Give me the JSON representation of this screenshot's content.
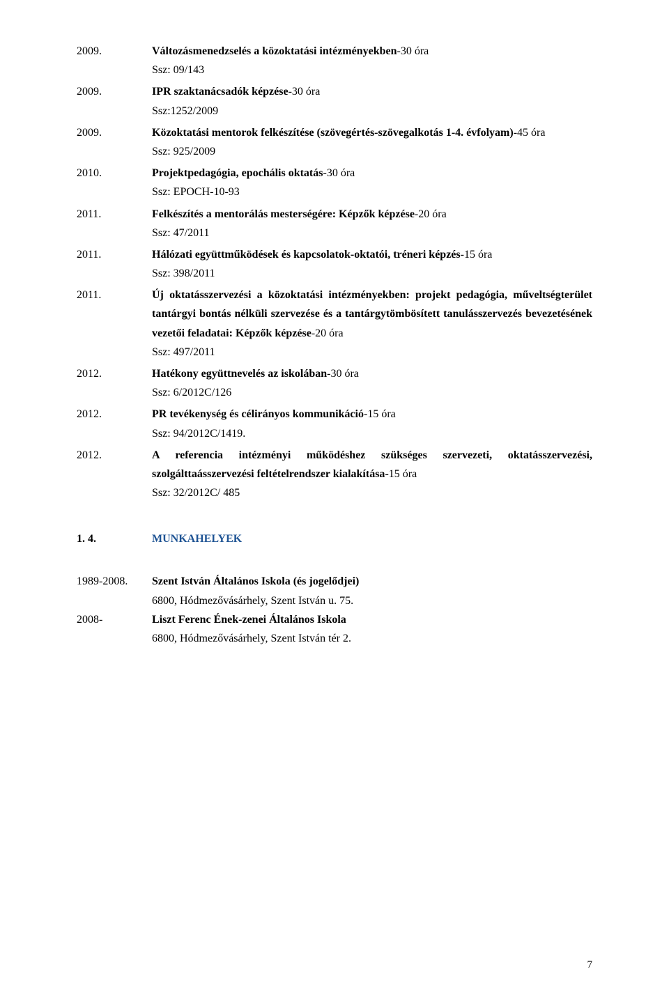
{
  "entries": [
    {
      "year": "2009.",
      "lines": [
        {
          "bold_prefix": "Változásmenedzselés a közoktatási intézményekben",
          "suffix": "-30 óra"
        }
      ],
      "sublines": [
        "Ssz: 09/143"
      ]
    },
    {
      "year": "2009.",
      "lines": [
        {
          "bold_prefix": "IPR szaktanácsadók képzése",
          "suffix": "-30 óra"
        }
      ],
      "sublines": [
        "Ssz:1252/2009"
      ]
    },
    {
      "year": "2009.",
      "lines": [
        {
          "bold_prefix": "Közoktatási mentorok felkészítése (szövegértés-szövegalkotás 1-4. évfolyam)",
          "suffix": "-45 óra"
        }
      ],
      "sublines": [
        "Ssz: 925/2009"
      ]
    },
    {
      "year": "2010.",
      "lines": [
        {
          "bold_prefix": "Projektpedagógia, epochális oktatás",
          "suffix": "-30 óra"
        }
      ],
      "sublines": [
        "Ssz: EPOCH-10-93"
      ]
    },
    {
      "year": "2011.",
      "lines": [
        {
          "bold_prefix": "Felkészítés a mentorálás mesterségére: Képzők képzése",
          "suffix": "-20 óra"
        }
      ],
      "sublines": [
        "Ssz: 47/2011"
      ]
    },
    {
      "year": "2011.",
      "lines": [
        {
          "bold_prefix": "Hálózati együttműködések és kapcsolatok-oktatói, tréneri képzés",
          "suffix": "-15 óra"
        }
      ],
      "sublines": [
        "Ssz: 398/2011"
      ]
    },
    {
      "year": "2011.",
      "lines": [
        {
          "bold_prefix": "Új oktatásszervezési a közoktatási intézményekben: projekt pedagógia, műveltségterület tantárgyi bontás nélküli szervezése és a tantárgytömbösített tanulásszervezés bevezetésének vezetői feladatai: Képzők képzése",
          "suffix": "-20 óra"
        }
      ],
      "sublines": [
        "Ssz: 497/2011"
      ]
    },
    {
      "year": "2012.",
      "lines": [
        {
          "bold_prefix": "Hatékony együttnevelés az iskolában",
          "suffix": "-30 óra"
        }
      ],
      "sublines": [
        "Ssz: 6/2012C/126"
      ]
    },
    {
      "year": "2012.",
      "lines": [
        {
          "bold_prefix": "PR tevékenység és célirányos kommunikáció",
          "suffix": "-15 óra"
        }
      ],
      "sublines": [
        "Ssz: 94/2012C/1419."
      ]
    },
    {
      "year": "2012.",
      "lines": [
        {
          "bold_prefix": "A referencia intézményi működéshez szükséges szervezeti, oktatásszervezési, szolgálttaásszervezési feltételrendszer kialakítása",
          "suffix": "-15 óra"
        }
      ],
      "sublines": [
        "Ssz: 32/2012C/ 485"
      ]
    }
  ],
  "section": {
    "num": "1. 4.",
    "title": "MUNKAHELYEK"
  },
  "workplaces": [
    {
      "period": "1989-2008.",
      "name": "Szent István Általános Iskola (és jogelődjei)",
      "address": "6800, Hódmezővásárhely, Szent István u. 75."
    },
    {
      "period": "2008-",
      "name": "Liszt Ferenc Ének-zenei Általános Iskola",
      "address": "6800, Hódmezővásárhely, Szent István tér 2."
    }
  ],
  "page_number": "7"
}
